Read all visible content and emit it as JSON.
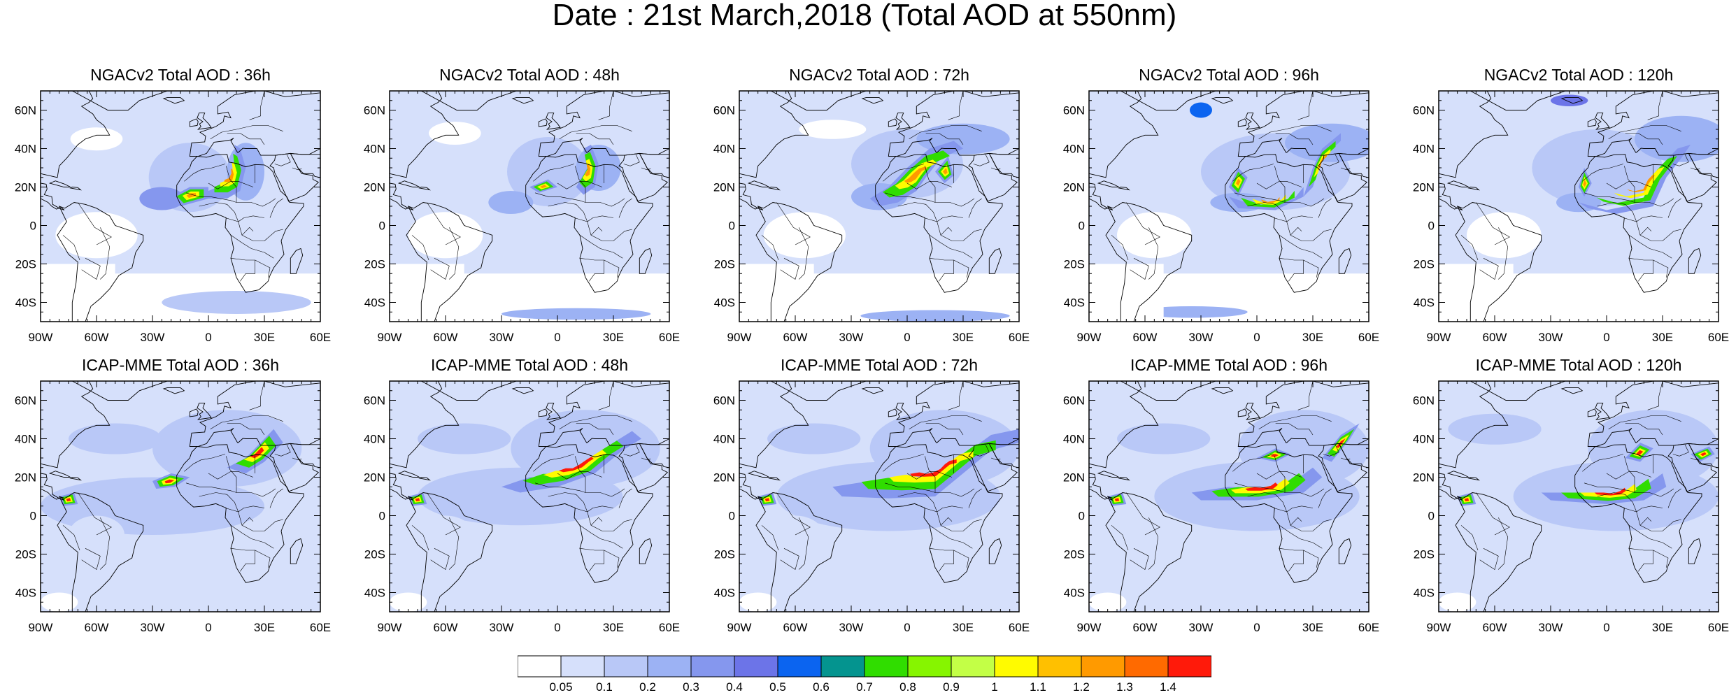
{
  "title": "Date : 21st March,2018 (Total AOD at 550nm)",
  "axes": {
    "lon_ticks": [
      "90W",
      "60W",
      "30W",
      "0",
      "30E",
      "60E"
    ],
    "lat_ticks": [
      "60N",
      "40N",
      "20N",
      "0",
      "20S",
      "40S"
    ],
    "lon_range": [
      -90,
      60
    ],
    "lat_range": [
      -50,
      70
    ]
  },
  "rows": [
    {
      "model": "NGACv2",
      "panels": [
        {
          "title": "NGACv2 Total AOD : 36h",
          "hour": 36
        },
        {
          "title": "NGACv2 Total AOD : 48h",
          "hour": 48
        },
        {
          "title": "NGACv2 Total AOD : 72h",
          "hour": 72
        },
        {
          "title": "NGACv2 Total AOD : 96h",
          "hour": 96
        },
        {
          "title": "NGACv2 Total AOD : 120h",
          "hour": 120
        }
      ]
    },
    {
      "model": "ICAP-MME",
      "panels": [
        {
          "title": "ICAP-MME Total AOD : 36h",
          "hour": 36
        },
        {
          "title": "ICAP-MME Total AOD : 48h",
          "hour": 48
        },
        {
          "title": "ICAP-MME Total AOD : 72h",
          "hour": 72
        },
        {
          "title": "ICAP-MME Total AOD : 96h",
          "hour": 96
        },
        {
          "title": "ICAP-MME Total AOD : 120h",
          "hour": 120
        }
      ]
    }
  ],
  "colorbar": {
    "labels": [
      "0.05",
      "0.1",
      "0.2",
      "0.3",
      "0.4",
      "0.5",
      "0.6",
      "0.7",
      "0.8",
      "0.9",
      "1",
      "1.1",
      "1.2",
      "1.3",
      "1.4"
    ],
    "colors": [
      "#ffffff",
      "#d6e0fb",
      "#b9c8f7",
      "#9cb2f4",
      "#8597ee",
      "#6c74e8",
      "#0b64f0",
      "#04948f",
      "#30dd00",
      "#86f500",
      "#c3ff46",
      "#fffb00",
      "#ffc000",
      "#ff9a00",
      "#ff6a00",
      "#ff1a0a"
    ]
  }
}
